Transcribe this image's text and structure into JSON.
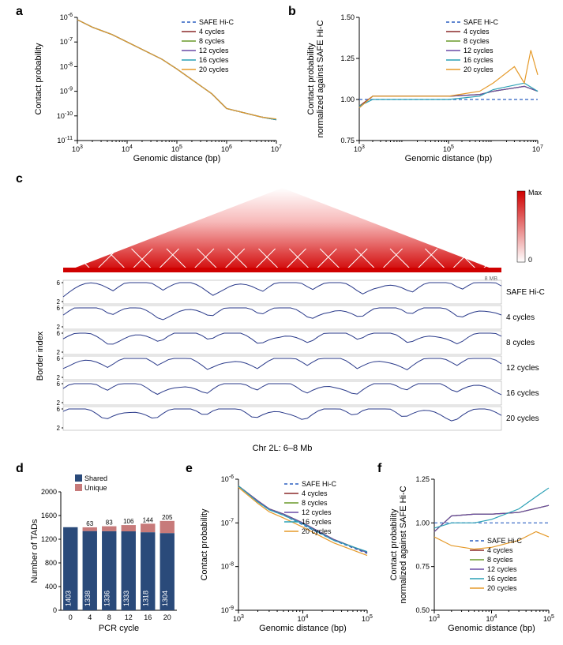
{
  "colors": {
    "safe": "#2a5fc1",
    "c4": "#8b2a2a",
    "c8": "#6a9a2a",
    "c12": "#6a4aa5",
    "c16": "#2aa0b5",
    "c20": "#e59a2a",
    "heatmap_max": "#d00000",
    "bar_shared": "#2a4a7a",
    "bar_unique": "#c77a7a",
    "track_line": "#2a3a8a",
    "grid": "#cccccc"
  },
  "panel_labels": {
    "a": "a",
    "b": "b",
    "c": "c",
    "d": "d",
    "e": "e",
    "f": "f"
  },
  "legends": {
    "series": [
      {
        "label": "SAFE Hi-C",
        "color_key": "safe",
        "dash": true
      },
      {
        "label": "4 cycles",
        "color_key": "c4",
        "dash": false
      },
      {
        "label": "8 cycles",
        "color_key": "c8",
        "dash": false
      },
      {
        "label": "12 cycles",
        "color_key": "c12",
        "dash": false
      },
      {
        "label": "16 cycles",
        "color_key": "c16",
        "dash": false
      },
      {
        "label": "20 cycles",
        "color_key": "c20",
        "dash": false
      }
    ]
  },
  "panel_a": {
    "type": "line",
    "title": "",
    "xlabel": "Genomic distance (bp)",
    "ylabel": "Contact probability",
    "xscale": "log",
    "yscale": "log",
    "xlim": [
      1000.0,
      10000000.0
    ],
    "ylim": [
      1e-11,
      1e-06
    ],
    "xticks": [
      1000.0,
      10000.0,
      100000.0,
      1000000.0,
      10000000.0
    ],
    "xtick_labels": [
      "10^3",
      "10^4",
      "10^5",
      "10^6",
      "10^7"
    ],
    "yticks": [
      1e-11,
      1e-10,
      1e-09,
      1e-08,
      1e-07,
      1e-06
    ],
    "ytick_labels": [
      "10^-11",
      "10^-10",
      "10^-9",
      "10^-8",
      "10^-7",
      "10^-6"
    ],
    "series": [
      {
        "key": "safe",
        "x": [
          1000.0,
          2000.0,
          5000.0,
          10000.0,
          50000.0,
          100000.0,
          500000.0,
          1000000.0,
          5000000.0,
          10000000.0
        ],
        "y": [
          8e-07,
          4e-07,
          2e-07,
          1e-07,
          2e-08,
          8e-09,
          8e-10,
          2e-10,
          9e-11,
          7e-11
        ]
      },
      {
        "key": "c4",
        "x": [
          1000.0,
          2000.0,
          5000.0,
          10000.0,
          50000.0,
          100000.0,
          500000.0,
          1000000.0,
          5000000.0,
          10000000.0
        ],
        "y": [
          8e-07,
          4e-07,
          2e-07,
          1e-07,
          2e-08,
          8e-09,
          8e-10,
          2e-10,
          9e-11,
          7e-11
        ]
      },
      {
        "key": "c8",
        "x": [
          1000.0,
          2000.0,
          5000.0,
          10000.0,
          50000.0,
          100000.0,
          500000.0,
          1000000.0,
          5000000.0,
          10000000.0
        ],
        "y": [
          8e-07,
          4e-07,
          2e-07,
          1e-07,
          2e-08,
          8e-09,
          8e-10,
          2e-10,
          9e-11,
          7e-11
        ]
      },
      {
        "key": "c12",
        "x": [
          1000.0,
          2000.0,
          5000.0,
          10000.0,
          50000.0,
          100000.0,
          500000.0,
          1000000.0,
          5000000.0,
          10000000.0
        ],
        "y": [
          8e-07,
          4e-07,
          2e-07,
          1e-07,
          2e-08,
          8e-09,
          8e-10,
          2e-10,
          9e-11,
          7e-11
        ]
      },
      {
        "key": "c16",
        "x": [
          1000.0,
          2000.0,
          5000.0,
          10000.0,
          50000.0,
          100000.0,
          500000.0,
          1000000.0,
          5000000.0,
          10000000.0
        ],
        "y": [
          8e-07,
          4e-07,
          2e-07,
          1e-07,
          2e-08,
          8e-09,
          8e-10,
          2e-10,
          9e-11,
          7e-11
        ]
      },
      {
        "key": "c20",
        "x": [
          1000.0,
          2000.0,
          5000.0,
          10000.0,
          50000.0,
          100000.0,
          500000.0,
          1000000.0,
          5000000.0,
          10000000.0
        ],
        "y": [
          8e-07,
          4e-07,
          2e-07,
          1e-07,
          2e-08,
          8e-09,
          8e-10,
          2e-10,
          9e-11,
          7.5e-11
        ]
      }
    ]
  },
  "panel_b": {
    "type": "line",
    "xlabel": "Genomic distance (bp)",
    "ylabel": "Contact probability\nnormalized against SAFE Hi-C",
    "xscale": "log",
    "yscale": "linear",
    "xlim": [
      1000.0,
      10000000.0
    ],
    "ylim": [
      0.75,
      1.5
    ],
    "xticks": [
      1000.0,
      100000.0,
      10000000.0
    ],
    "xtick_labels": [
      "10^3",
      "10^5",
      "10^7"
    ],
    "yticks": [
      0.75,
      1.0,
      1.25,
      1.5
    ],
    "ytick_labels": [
      "0.75",
      "1.00",
      "1.25",
      "1.50"
    ],
    "series": [
      {
        "key": "safe",
        "x": [
          1000.0,
          10000000.0
        ],
        "y": [
          1.0,
          1.0
        ]
      },
      {
        "key": "c4",
        "x": [
          1000.0,
          2000.0,
          10000.0,
          100000.0,
          500000.0,
          1000000.0,
          5000000.0,
          10000000.0
        ],
        "y": [
          0.96,
          1.02,
          1.02,
          1.02,
          1.03,
          1.05,
          1.08,
          1.05
        ]
      },
      {
        "key": "c8",
        "x": [
          1000.0,
          2000.0,
          10000.0,
          100000.0,
          500000.0,
          1000000.0,
          5000000.0,
          10000000.0
        ],
        "y": [
          0.95,
          1.02,
          1.02,
          1.02,
          1.03,
          1.05,
          1.08,
          1.05
        ]
      },
      {
        "key": "c12",
        "x": [
          1000.0,
          2000.0,
          10000.0,
          100000.0,
          500000.0,
          1000000.0,
          5000000.0,
          10000000.0
        ],
        "y": [
          0.95,
          1.02,
          1.02,
          1.02,
          1.03,
          1.05,
          1.08,
          1.05
        ]
      },
      {
        "key": "c16",
        "x": [
          1000.0,
          2000.0,
          10000.0,
          100000.0,
          500000.0,
          1000000.0,
          5000000.0,
          10000000.0
        ],
        "y": [
          0.96,
          1.0,
          1.0,
          1.0,
          1.02,
          1.06,
          1.1,
          1.05
        ]
      },
      {
        "key": "c20",
        "x": [
          1000.0,
          2000.0,
          10000.0,
          100000.0,
          500000.0,
          1000000.0,
          3000000.0,
          5000000.0,
          7000000.0,
          10000000.0
        ],
        "y": [
          0.95,
          1.02,
          1.02,
          1.02,
          1.05,
          1.1,
          1.2,
          1.1,
          1.3,
          1.15
        ]
      }
    ]
  },
  "panel_c": {
    "type": "heatmap_tracks",
    "xlabel": "Chr 2L: 6–8 Mb",
    "ylabel": "Border index",
    "colorbar": {
      "min_label": "0",
      "max_label": "Max"
    },
    "scale_label": "8 MB",
    "track_yticks": [
      2,
      6
    ],
    "tracks": [
      {
        "label": "SAFE Hi-C"
      },
      {
        "label": "4 cycles"
      },
      {
        "label": "8 cycles"
      },
      {
        "label": "12 cycles"
      },
      {
        "label": "16 cycles"
      },
      {
        "label": "20 cycles"
      }
    ]
  },
  "panel_d": {
    "type": "bar",
    "xlabel": "PCR cycle",
    "ylabel": "Number of TADs",
    "ylim": [
      0,
      2000
    ],
    "yticks": [
      0,
      400,
      800,
      1200,
      1600,
      2000
    ],
    "ytick_labels": [
      "0",
      "400",
      "800",
      "1200",
      "1600",
      "2000"
    ],
    "legend": [
      {
        "label": "Shared",
        "color_key": "bar_shared"
      },
      {
        "label": "Unique",
        "color_key": "bar_unique"
      }
    ],
    "categories": [
      "0",
      "4",
      "8",
      "12",
      "16",
      "20"
    ],
    "shared": [
      1403,
      1338,
      1336,
      1333,
      1318,
      1304
    ],
    "unique": [
      0,
      63,
      83,
      106,
      144,
      205
    ],
    "bar_width": 0.75
  },
  "panel_e": {
    "type": "line",
    "xlabel": "Genomic distance (bp)",
    "ylabel": "Contact probability",
    "xscale": "log",
    "yscale": "log",
    "xlim": [
      1000.0,
      100000.0
    ],
    "ylim": [
      1e-09,
      1e-06
    ],
    "xticks": [
      1000.0,
      10000.0,
      100000.0
    ],
    "xtick_labels": [
      "10^3",
      "10^4",
      "10^5"
    ],
    "yticks": [
      1e-09,
      1e-08,
      1e-07,
      1e-06
    ],
    "ytick_labels": [
      "10^-9",
      "10^-8",
      "10^-7",
      "10^-6"
    ],
    "series": [
      {
        "key": "safe",
        "x": [
          1000.0,
          2000.0,
          3000.0,
          5000.0,
          10000.0,
          30000.0,
          100000.0
        ],
        "y": [
          7e-07,
          3e-07,
          2e-07,
          1.5e-07,
          9e-08,
          4e-08,
          2e-08
        ]
      },
      {
        "key": "c4",
        "x": [
          1000.0,
          2000.0,
          3000.0,
          5000.0,
          10000.0,
          30000.0,
          100000.0
        ],
        "y": [
          7e-07,
          3.2e-07,
          2.1e-07,
          1.6e-07,
          1e-07,
          4.2e-08,
          2.1e-08
        ]
      },
      {
        "key": "c8",
        "x": [
          1000.0,
          2000.0,
          3000.0,
          5000.0,
          10000.0,
          30000.0,
          100000.0
        ],
        "y": [
          7e-07,
          3.2e-07,
          2.1e-07,
          1.6e-07,
          1e-07,
          4.2e-08,
          2.1e-08
        ]
      },
      {
        "key": "c12",
        "x": [
          1000.0,
          2000.0,
          3000.0,
          5000.0,
          10000.0,
          30000.0,
          100000.0
        ],
        "y": [
          7e-07,
          3.2e-07,
          2.1e-07,
          1.6e-07,
          1e-07,
          4.2e-08,
          2.1e-08
        ]
      },
      {
        "key": "c16",
        "x": [
          1000.0,
          2000.0,
          3000.0,
          5000.0,
          10000.0,
          30000.0,
          100000.0
        ],
        "y": [
          7e-07,
          3e-07,
          2e-07,
          1.5e-07,
          9.5e-08,
          4e-08,
          2.2e-08
        ]
      },
      {
        "key": "c20",
        "x": [
          1000.0,
          2000.0,
          3000.0,
          5000.0,
          10000.0,
          30000.0,
          100000.0
        ],
        "y": [
          6.5e-07,
          2.8e-07,
          1.8e-07,
          1.3e-07,
          8e-08,
          3.5e-08,
          1.8e-08
        ]
      }
    ]
  },
  "panel_f": {
    "type": "line",
    "xlabel": "Genomic distance (bp)",
    "ylabel": "Contact probability\nnormalized against SAFE Hi-C",
    "xscale": "log",
    "yscale": "linear",
    "xlim": [
      1000.0,
      100000.0
    ],
    "ylim": [
      0.5,
      1.25
    ],
    "xticks": [
      1000.0,
      10000.0,
      100000.0
    ],
    "xtick_labels": [
      "10^3",
      "10^4",
      "10^5"
    ],
    "yticks": [
      0.5,
      0.75,
      1.0,
      1.25
    ],
    "ytick_labels": [
      "0.50",
      "0.75",
      "1.00",
      "1.25"
    ],
    "series": [
      {
        "key": "safe",
        "x": [
          1000.0,
          100000.0
        ],
        "y": [
          1.0,
          1.0
        ]
      },
      {
        "key": "c4",
        "x": [
          1000.0,
          2000.0,
          5000.0,
          10000.0,
          30000.0,
          100000.0
        ],
        "y": [
          0.95,
          1.04,
          1.05,
          1.05,
          1.06,
          1.1
        ]
      },
      {
        "key": "c8",
        "x": [
          1000.0,
          2000.0,
          5000.0,
          10000.0,
          30000.0,
          100000.0
        ],
        "y": [
          0.95,
          1.04,
          1.05,
          1.05,
          1.06,
          1.1
        ]
      },
      {
        "key": "c12",
        "x": [
          1000.0,
          2000.0,
          5000.0,
          10000.0,
          30000.0,
          100000.0
        ],
        "y": [
          0.95,
          1.04,
          1.05,
          1.05,
          1.06,
          1.1
        ]
      },
      {
        "key": "c16",
        "x": [
          1000.0,
          2000.0,
          5000.0,
          10000.0,
          30000.0,
          60000.0,
          100000.0
        ],
        "y": [
          0.97,
          1.0,
          1.0,
          1.02,
          1.08,
          1.15,
          1.2
        ]
      },
      {
        "key": "c20",
        "x": [
          1000.0,
          2000.0,
          5000.0,
          10000.0,
          30000.0,
          60000.0,
          100000.0
        ],
        "y": [
          0.92,
          0.87,
          0.85,
          0.86,
          0.9,
          0.95,
          0.92
        ]
      }
    ]
  }
}
